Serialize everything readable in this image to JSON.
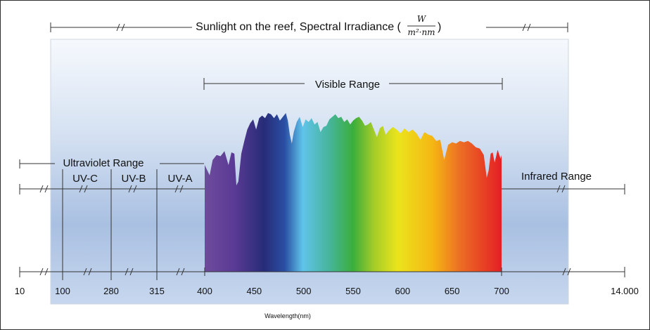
{
  "chart_data": {
    "type": "area",
    "title": "Sunlight on the reef, Spectral Irradiance",
    "title_unit": {
      "numerator": "W",
      "denominator": "m²·nm"
    },
    "xlabel": "Wavelength(nm)",
    "ylabel": "",
    "visible_range_label": "Visible Range",
    "ultraviolet_range_label": "Ultraviolet Range",
    "infrared_range_label": "Infrared Range",
    "uv_bands": [
      "UV-C",
      "UV-B",
      "UV-A"
    ],
    "x_ticks_outer": [
      "10",
      "100",
      "280",
      "315"
    ],
    "x_ticks_visible": [
      "400",
      "450",
      "500",
      "550",
      "600",
      "650",
      "700"
    ],
    "x_tick_far_right": "14.000",
    "x": [
      400,
      405,
      408,
      412,
      416,
      420,
      424,
      427,
      430,
      432,
      434,
      437,
      440,
      443,
      446,
      449,
      452,
      455,
      458,
      461,
      464,
      467,
      470,
      473,
      476,
      479,
      482,
      484,
      486,
      488,
      490,
      493,
      496,
      499,
      502,
      505,
      508,
      511,
      514,
      517,
      520,
      523,
      526,
      529,
      532,
      535,
      538,
      541,
      544,
      547,
      550,
      553,
      556,
      559,
      562,
      565,
      568,
      571,
      574,
      577,
      580,
      583,
      586,
      590,
      594,
      598,
      602,
      606,
      610,
      614,
      618,
      622,
      626,
      630,
      634,
      638,
      642,
      646,
      650,
      654,
      658,
      662,
      666,
      670,
      674,
      678,
      682,
      685,
      687,
      689,
      691,
      693,
      696,
      699,
      700
    ],
    "y": [
      0.84,
      0.76,
      0.88,
      0.92,
      0.91,
      0.95,
      0.84,
      0.94,
      0.93,
      0.68,
      0.71,
      0.93,
      1.03,
      1.12,
      1.17,
      1.2,
      1.12,
      1.21,
      1.23,
      1.21,
      1.25,
      1.24,
      1.21,
      1.24,
      1.19,
      1.22,
      1.25,
      1.19,
      1.08,
      1.01,
      1.1,
      1.18,
      1.22,
      1.14,
      1.2,
      1.18,
      1.21,
      1.16,
      1.18,
      1.1,
      1.14,
      1.15,
      1.2,
      1.22,
      1.24,
      1.21,
      1.22,
      1.18,
      1.2,
      1.16,
      1.19,
      1.21,
      1.22,
      1.19,
      1.15,
      1.16,
      1.18,
      1.12,
      1.06,
      1.13,
      1.15,
      1.08,
      1.11,
      1.14,
      1.12,
      1.09,
      1.13,
      1.1,
      1.12,
      1.09,
      1.04,
      1.1,
      1.08,
      1.07,
      1.03,
      1.04,
      0.88,
      1.0,
      1.02,
      1.01,
      1.03,
      1.02,
      1.03,
      1.01,
      0.98,
      0.97,
      0.92,
      0.74,
      0.8,
      0.93,
      0.94,
      0.86,
      0.96,
      0.89,
      0.92
    ],
    "ylim": [
      0,
      1.5
    ],
    "xlim_visible": [
      400,
      700
    ],
    "grid": false,
    "legend": "none"
  }
}
